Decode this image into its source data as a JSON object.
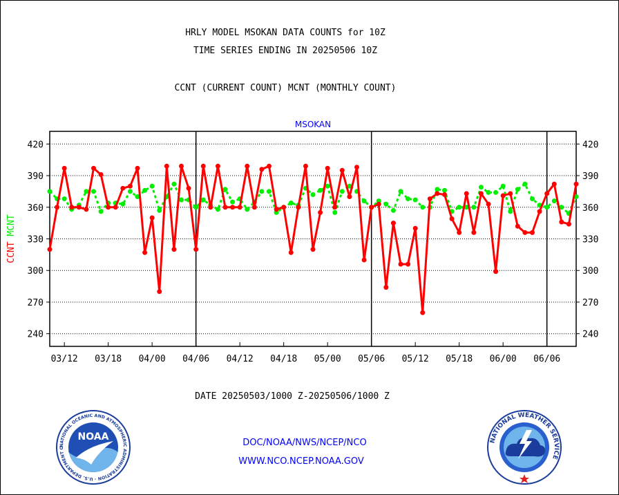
{
  "page": {
    "title_line1": "HRLY MODEL MSOKAN DATA COUNTS for 10Z",
    "title_line2": "TIME SERIES ENDING IN 20250506 10Z",
    "subtitle": "CCNT (CURRENT COUNT) MCNT (MONTHLY COUNT)",
    "date_range": "DATE 20250503/1000 Z-20250506/1000 Z",
    "footer_line1": "DOC/NOAA/NWS/NCEP/NCO",
    "footer_line2": "WWW.NCO.NCEP.NOAA.GOV",
    "logo_left": "NOAA",
    "logo_left_ring": "NATIONAL OCEANIC AND ATMOSPHERIC ADMINISTRATION · U.S. DEPARTMENT OF COMMERCE",
    "logo_right_ring": "NATIONAL WEATHER SERVICE"
  },
  "colors": {
    "ccnt": "#ff0000",
    "mcnt": "#00ee00",
    "title": "#000000",
    "station_label": "#0000ff",
    "footer": "#0000ff",
    "date": "#ff0000"
  },
  "chart_data": {
    "type": "line",
    "title": "MSOKAN",
    "ylabel_left_ccnt": "CCNT",
    "ylabel_left_mcnt": "MCNT",
    "ylim": [
      228,
      432
    ],
    "yticks": [
      240,
      270,
      300,
      330,
      360,
      390,
      420
    ],
    "ytick_labels": [
      "240",
      "270",
      "300",
      "330",
      "360",
      "390",
      "420"
    ],
    "y_axis_right": true,
    "grid": "horizontal dotted",
    "x": [
      0,
      1,
      2,
      3,
      4,
      5,
      6,
      7,
      8,
      9,
      10,
      11,
      12,
      13,
      14,
      15,
      16,
      17,
      18,
      19,
      20,
      21,
      22,
      23,
      24,
      25,
      26,
      27,
      28,
      29,
      30,
      31,
      32,
      33,
      34,
      35,
      36,
      37,
      38,
      39,
      40,
      41,
      42,
      43,
      44,
      45,
      46,
      47,
      48,
      49,
      50,
      51,
      52,
      53,
      54,
      55,
      56,
      57,
      58,
      59,
      60,
      61,
      62,
      63,
      64,
      65,
      66,
      67,
      68,
      69,
      70,
      71,
      72
    ],
    "xlim": [
      0,
      72
    ],
    "xtick_positions": [
      2,
      8,
      14,
      20,
      26,
      32,
      38,
      44,
      50,
      56,
      62,
      68,
      74
    ],
    "xtick_labels": [
      "03/12",
      "03/18",
      "04/00",
      "04/06",
      "04/12",
      "04/18",
      "05/00",
      "05/06",
      "05/12",
      "05/18",
      "06/00",
      "06/06",
      ""
    ],
    "day_boundaries": [
      20,
      44,
      68
    ],
    "series": [
      {
        "name": "CCNT",
        "color": "#ff0000",
        "values": [
          320,
          360,
          397,
          360,
          360,
          358,
          397,
          391,
          360,
          360,
          378,
          380,
          397,
          317,
          350,
          280,
          399,
          320,
          399,
          378,
          320,
          399,
          360,
          399,
          360,
          360,
          360,
          399,
          360,
          396,
          399,
          358,
          360,
          317,
          360,
          399,
          320,
          355,
          397,
          360,
          395,
          370,
          398,
          310,
          360,
          363,
          284,
          345,
          306,
          306,
          340,
          260,
          368,
          373,
          372,
          349,
          336,
          373,
          336,
          373,
          363,
          299,
          371,
          373,
          342,
          336,
          336,
          356,
          373,
          382,
          346,
          344,
          382
        ]
      },
      {
        "name": "MCNT",
        "color": "#00ee00",
        "values": [
          375,
          368,
          368,
          358,
          362,
          375,
          375,
          356,
          364,
          364,
          363,
          375,
          370,
          376,
          380,
          357,
          370,
          382,
          367,
          367,
          360,
          367,
          362,
          358,
          377,
          365,
          368,
          358,
          365,
          375,
          375,
          355,
          360,
          364,
          362,
          378,
          372,
          376,
          380,
          355,
          375,
          380,
          375,
          366,
          360,
          366,
          363,
          357,
          375,
          368,
          367,
          360,
          360,
          377,
          376,
          356,
          360,
          360,
          360,
          379,
          374,
          374,
          380,
          356,
          377,
          382,
          368,
          362,
          360,
          366,
          360,
          354,
          370
        ]
      }
    ]
  }
}
